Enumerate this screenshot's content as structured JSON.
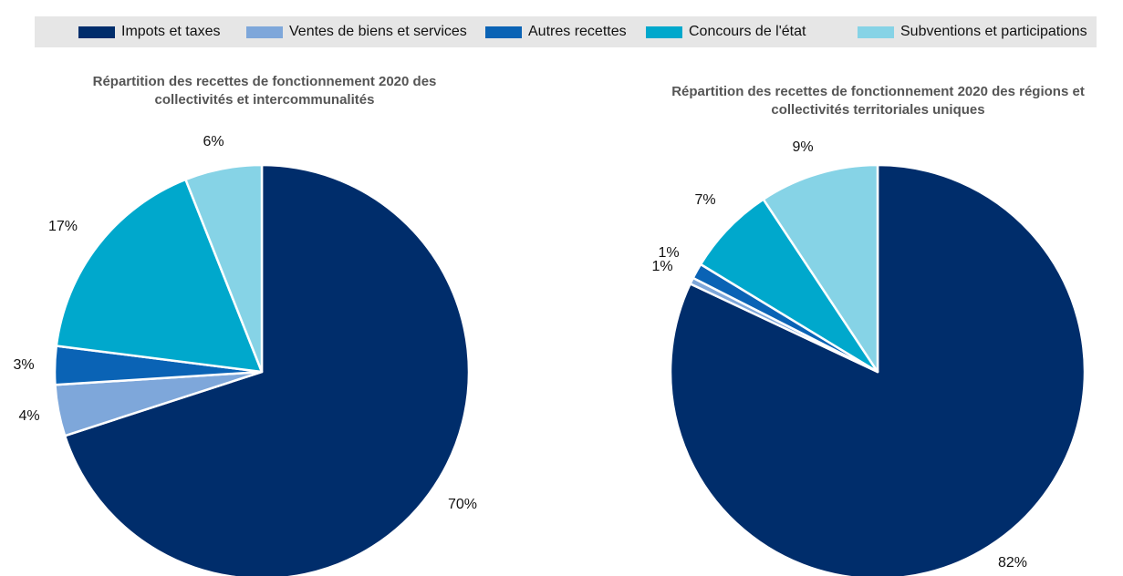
{
  "legend": [
    {
      "label": "Impots et taxes",
      "color": "#002d6b"
    },
    {
      "label": "Ventes de biens et services",
      "color": "#7ea7da"
    },
    {
      "label": "Autres recettes",
      "color": "#0a63b5"
    },
    {
      "label": "Concours de l'état",
      "color": "#00a8cc"
    },
    {
      "label": "Subventions et participations",
      "color": "#86d3e6"
    }
  ],
  "chart_data": [
    {
      "type": "pie",
      "title_line1": "Répartition des recettes de fonctionnement 2020 des",
      "title_line2": "collectivités et intercommunalités",
      "start": "12 o'clock",
      "direction": "clockwise",
      "slices": [
        {
          "category": "Impots et taxes",
          "value": 70,
          "label": "70%"
        },
        {
          "category": "Ventes de biens et services",
          "value": 4,
          "label": "4%"
        },
        {
          "category": "Autres recettes",
          "value": 3,
          "label": "3%"
        },
        {
          "category": "Concours de l'état",
          "value": 17,
          "label": "17%"
        },
        {
          "category": "Subventions et participations",
          "value": 6,
          "label": "6%"
        }
      ]
    },
    {
      "type": "pie",
      "title_line1": "Répartition des recettes de fonctionnement 2020 des régions et",
      "title_line2": "collectivités territoriales uniques",
      "start": "12 o'clock",
      "direction": "clockwise",
      "slices": [
        {
          "category": "Impots et taxes",
          "value": 82,
          "label": "82%"
        },
        {
          "category": "Ventes de biens et services",
          "value": 0.5,
          "label": "1%"
        },
        {
          "category": "Autres recettes",
          "value": 1.2,
          "label": "1%"
        },
        {
          "category": "Concours de l'état",
          "value": 7,
          "label": "7%"
        },
        {
          "category": "Subventions et participations",
          "value": 9.3,
          "label": "9%"
        }
      ]
    }
  ]
}
